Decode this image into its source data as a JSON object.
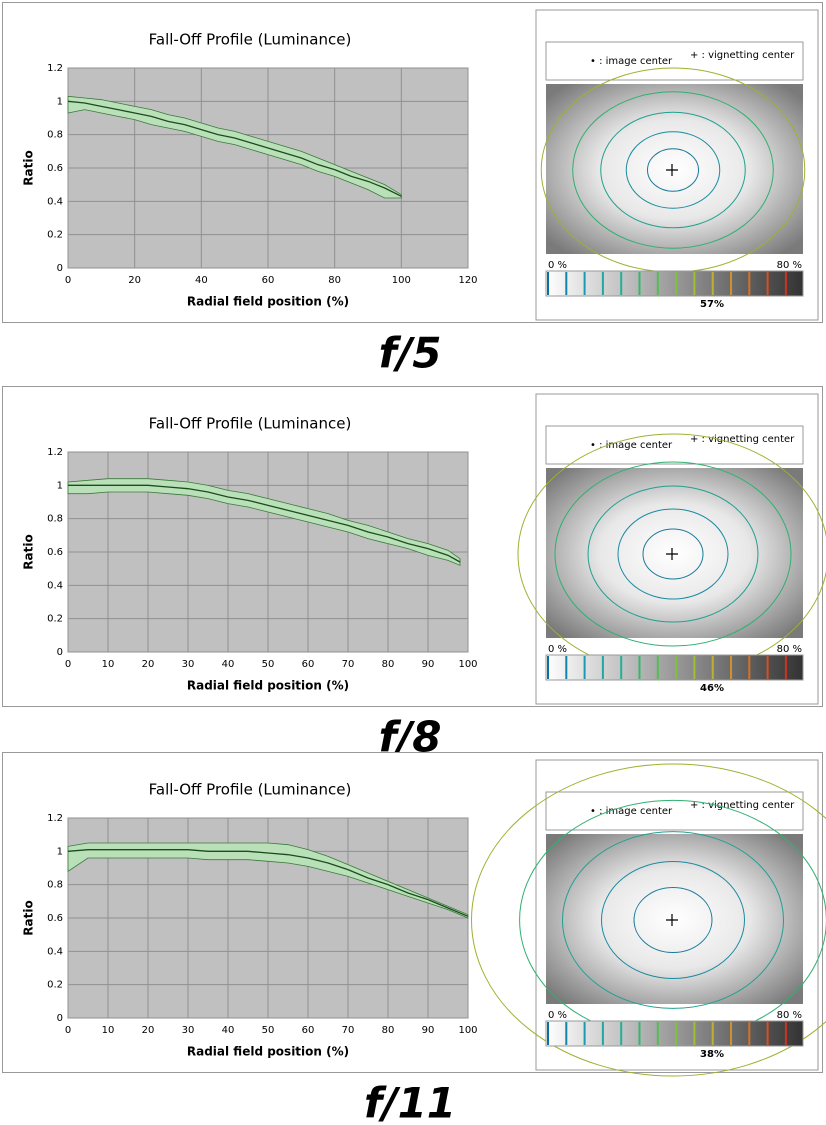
{
  "chart_data": [
    {
      "type": "line",
      "title": "Fall-Off Profile (Luminance)",
      "xlabel": "Radial field position (%)",
      "ylabel": "Ratio",
      "x": [
        0,
        5,
        10,
        15,
        20,
        25,
        30,
        35,
        40,
        45,
        50,
        55,
        60,
        65,
        70,
        75,
        80,
        85,
        90,
        95,
        100
      ],
      "series": [
        {
          "color": "#1a4d1a",
          "values": [
            1.0,
            0.99,
            0.97,
            0.95,
            0.93,
            0.91,
            0.88,
            0.86,
            0.83,
            0.8,
            0.78,
            0.75,
            0.72,
            0.69,
            0.66,
            0.62,
            0.59,
            0.55,
            0.52,
            0.48,
            0.43
          ]
        }
      ],
      "band": {
        "color": "#b9e0b9",
        "upper": [
          1.03,
          1.02,
          1.01,
          0.99,
          0.97,
          0.95,
          0.92,
          0.9,
          0.87,
          0.84,
          0.82,
          0.79,
          0.76,
          0.73,
          0.7,
          0.66,
          0.62,
          0.58,
          0.54,
          0.5,
          0.44
        ],
        "lower": [
          0.93,
          0.95,
          0.93,
          0.91,
          0.89,
          0.86,
          0.84,
          0.82,
          0.79,
          0.76,
          0.74,
          0.71,
          0.68,
          0.65,
          0.62,
          0.58,
          0.55,
          0.51,
          0.47,
          0.42,
          0.42
        ]
      },
      "xlim": [
        0,
        120
      ],
      "xticks": [
        0,
        20,
        40,
        60,
        80,
        100,
        120
      ],
      "ylim": [
        0,
        1.2
      ],
      "yticks": [
        0,
        0.2,
        0.4,
        0.6,
        0.8,
        1,
        1.2
      ],
      "grid": true,
      "aperture": "f/5",
      "map": {
        "legend": [
          "• : image center",
          "+ : vignetting center"
        ],
        "scale_min": "0 %",
        "scale_max": "80 %",
        "value_label": "57%"
      }
    },
    {
      "type": "line",
      "title": "Fall-Off Profile (Luminance)",
      "xlabel": "Radial field position (%)",
      "ylabel": "Ratio",
      "x": [
        0,
        5,
        10,
        15,
        20,
        25,
        30,
        35,
        40,
        45,
        50,
        55,
        60,
        65,
        70,
        75,
        80,
        85,
        90,
        95,
        98
      ],
      "series": [
        {
          "color": "#1a4d1a",
          "values": [
            1.0,
            1.0,
            1.0,
            1.0,
            1.0,
            0.99,
            0.98,
            0.96,
            0.93,
            0.91,
            0.88,
            0.85,
            0.82,
            0.79,
            0.76,
            0.72,
            0.69,
            0.65,
            0.62,
            0.58,
            0.54
          ]
        }
      ],
      "band": {
        "color": "#b9e0b9",
        "upper": [
          1.02,
          1.03,
          1.04,
          1.04,
          1.04,
          1.03,
          1.02,
          1.0,
          0.97,
          0.95,
          0.92,
          0.89,
          0.86,
          0.83,
          0.79,
          0.76,
          0.72,
          0.68,
          0.65,
          0.61,
          0.56
        ],
        "lower": [
          0.95,
          0.95,
          0.96,
          0.96,
          0.96,
          0.95,
          0.94,
          0.92,
          0.89,
          0.87,
          0.84,
          0.81,
          0.78,
          0.75,
          0.72,
          0.68,
          0.65,
          0.62,
          0.58,
          0.55,
          0.52
        ]
      },
      "xlim": [
        0,
        100
      ],
      "xticks": [
        0,
        10,
        20,
        30,
        40,
        50,
        60,
        70,
        80,
        90,
        100
      ],
      "ylim": [
        0,
        1.2
      ],
      "yticks": [
        0,
        0.2,
        0.4,
        0.6,
        0.8,
        1,
        1.2
      ],
      "grid": true,
      "aperture": "f/8",
      "map": {
        "legend": [
          "• : image center",
          "+ : vignetting center"
        ],
        "scale_min": "0 %",
        "scale_max": "80 %",
        "value_label": "46%"
      }
    },
    {
      "type": "line",
      "title": "Fall-Off Profile (Luminance)",
      "xlabel": "Radial field position (%)",
      "ylabel": "Ratio",
      "x": [
        0,
        5,
        10,
        15,
        20,
        25,
        30,
        35,
        40,
        45,
        50,
        55,
        60,
        65,
        70,
        75,
        80,
        85,
        90,
        95,
        100
      ],
      "series": [
        {
          "color": "#1a4d1a",
          "values": [
            1.0,
            1.01,
            1.01,
            1.01,
            1.01,
            1.01,
            1.01,
            1.0,
            1.0,
            1.0,
            0.99,
            0.98,
            0.96,
            0.93,
            0.89,
            0.84,
            0.8,
            0.75,
            0.71,
            0.66,
            0.61
          ]
        }
      ],
      "band": {
        "color": "#b9e0b9",
        "upper": [
          1.03,
          1.05,
          1.05,
          1.05,
          1.05,
          1.05,
          1.05,
          1.05,
          1.05,
          1.05,
          1.05,
          1.04,
          1.01,
          0.97,
          0.92,
          0.87,
          0.82,
          0.77,
          0.72,
          0.67,
          0.62
        ],
        "lower": [
          0.88,
          0.96,
          0.96,
          0.96,
          0.96,
          0.96,
          0.96,
          0.95,
          0.95,
          0.95,
          0.94,
          0.93,
          0.91,
          0.88,
          0.85,
          0.81,
          0.77,
          0.73,
          0.69,
          0.65,
          0.6
        ]
      },
      "xlim": [
        0,
        100
      ],
      "xticks": [
        0,
        10,
        20,
        30,
        40,
        50,
        60,
        70,
        80,
        90,
        100
      ],
      "ylim": [
        0,
        1.2
      ],
      "yticks": [
        0,
        0.2,
        0.4,
        0.6,
        0.8,
        1,
        1.2
      ],
      "grid": true,
      "aperture": "f/11",
      "map": {
        "legend": [
          "• : image center",
          "+ : vignetting center"
        ],
        "scale_min": "0 %",
        "scale_max": "80 %",
        "value_label": "38%"
      }
    }
  ]
}
